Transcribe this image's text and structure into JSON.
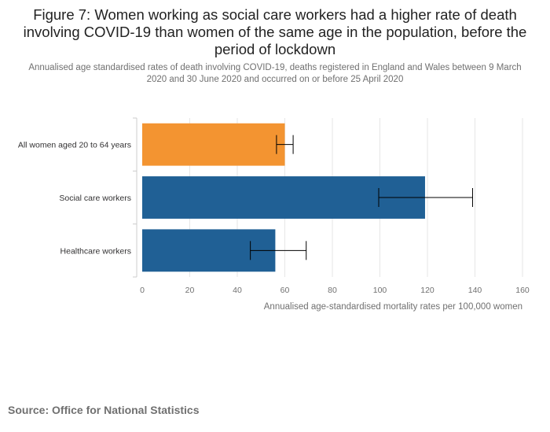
{
  "title": "Figure 7: Women working as social care workers had a higher rate of death involving COVID-19 than women of the same age in the population, before the period of lockdown",
  "subtitle": "Annualised age standardised rates of death involving COVID-19, deaths registered in England and Wales between 9 March 2020 and 30 June 2020 and occurred on or before 25 April 2020",
  "source": "Source: Office for National Statistics",
  "chart_data": {
    "type": "bar",
    "orientation": "horizontal",
    "categories": [
      "All women aged 20 to 64 years",
      "Social care workers",
      "Healthcare workers"
    ],
    "values": [
      60,
      119,
      56
    ],
    "error_low": [
      56.5,
      99.5,
      45.5
    ],
    "error_high": [
      63.5,
      139,
      69
    ],
    "colors": [
      "#f39431",
      "#206095",
      "#206095"
    ],
    "xlabel": "Annualised age-standardised mortality rates per 100,000 women",
    "xlim": [
      0,
      160
    ],
    "xticks": [
      0,
      20,
      40,
      60,
      80,
      100,
      120,
      140,
      160
    ],
    "grid": true,
    "gridColor": "#e6e6e6",
    "axisColor": "#cccccc",
    "errorBarColor": "#000000"
  }
}
